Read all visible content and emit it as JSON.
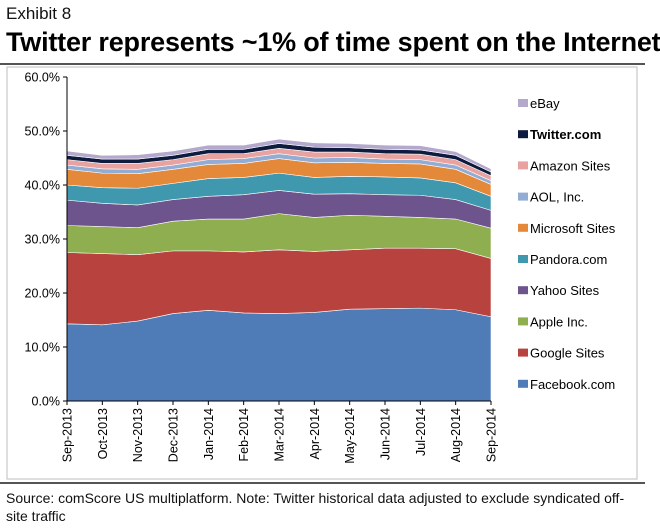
{
  "header": {
    "exhibit": "Exhibit 8",
    "title": "Twitter represents ~1% of time spent on the Internet"
  },
  "footer": {
    "source": "Source: comScore US multiplatform. Note: Twitter historical data adjusted to exclude syndicated off-site traffic"
  },
  "chart_data": {
    "type": "area",
    "stacked": true,
    "title": "Twitter represents ~1% of time spent on the Internet",
    "xlabel": "",
    "ylabel": "",
    "ylim": [
      0,
      60
    ],
    "y_tick_format": "percent_1dp",
    "y_ticks": [
      0,
      10,
      20,
      30,
      40,
      50,
      60
    ],
    "grid": false,
    "legend_position": "right",
    "categories": [
      "Sep-2013",
      "Oct-2013",
      "Nov-2013",
      "Dec-2013",
      "Jan-2014",
      "Feb-2014",
      "Mar-2014",
      "Apr-2014",
      "May-2014",
      "Jun-2014",
      "Jul-2014",
      "Aug-2014",
      "Sep-2014"
    ],
    "series": [
      {
        "name": "Facebook.com",
        "color": "#4f7cb7",
        "values": [
          14.3,
          14.1,
          14.8,
          16.2,
          16.8,
          16.3,
          16.2,
          16.4,
          17.0,
          17.1,
          17.2,
          16.9,
          15.6
        ]
      },
      {
        "name": "Google Sites",
        "color": "#b8433e",
        "values": [
          13.2,
          13.2,
          12.3,
          11.6,
          11.0,
          11.3,
          11.8,
          11.3,
          11.0,
          11.2,
          11.1,
          11.3,
          10.8
        ]
      },
      {
        "name": "Apple Inc.",
        "color": "#8fae4f",
        "values": [
          5.0,
          5.0,
          5.0,
          5.5,
          5.9,
          6.1,
          6.7,
          6.3,
          6.4,
          5.9,
          5.7,
          5.5,
          5.6
        ]
      },
      {
        "name": "Yahoo Sites",
        "color": "#6e548d",
        "values": [
          4.7,
          4.3,
          4.2,
          4.0,
          4.2,
          4.5,
          4.3,
          4.3,
          4.0,
          4.0,
          4.1,
          3.6,
          3.3
        ]
      },
      {
        "name": "Pandora.com",
        "color": "#3f98ae",
        "values": [
          2.8,
          2.9,
          3.1,
          3.0,
          3.3,
          3.2,
          3.2,
          3.1,
          3.2,
          3.3,
          3.2,
          3.1,
          2.6
        ]
      },
      {
        "name": "Microsoft Sites",
        "color": "#e4883a",
        "values": [
          2.9,
          2.7,
          2.7,
          2.6,
          2.6,
          2.6,
          2.7,
          2.7,
          2.6,
          2.5,
          2.6,
          2.5,
          2.2
        ]
      },
      {
        "name": "AOL, Inc.",
        "color": "#93acd3",
        "values": [
          0.8,
          0.8,
          0.8,
          0.8,
          0.9,
          0.9,
          0.9,
          0.9,
          0.9,
          0.8,
          0.8,
          0.8,
          0.7
        ]
      },
      {
        "name": "Amazon Sites",
        "color": "#e8a3a0",
        "values": [
          1.0,
          1.0,
          1.1,
          1.0,
          1.1,
          0.9,
          1.0,
          1.1,
          1.0,
          1.0,
          1.0,
          1.0,
          0.9
        ]
      },
      {
        "name": "Twitter.com",
        "color": "#0d1b3e",
        "values": [
          0.8,
          0.8,
          0.8,
          0.8,
          0.8,
          0.8,
          0.9,
          0.9,
          0.8,
          0.8,
          0.8,
          0.8,
          0.7
        ],
        "legend_bold": true
      },
      {
        "name": "eBay",
        "color": "#b4a8cc",
        "values": [
          0.8,
          0.7,
          0.8,
          0.8,
          0.8,
          0.8,
          0.8,
          0.8,
          0.8,
          0.8,
          0.8,
          0.7,
          0.6
        ]
      }
    ],
    "legend_order": [
      "eBay",
      "Twitter.com",
      "Amazon Sites",
      "AOL, Inc.",
      "Microsoft Sites",
      "Pandora.com",
      "Yahoo Sites",
      "Apple Inc.",
      "Google Sites",
      "Facebook.com"
    ]
  }
}
